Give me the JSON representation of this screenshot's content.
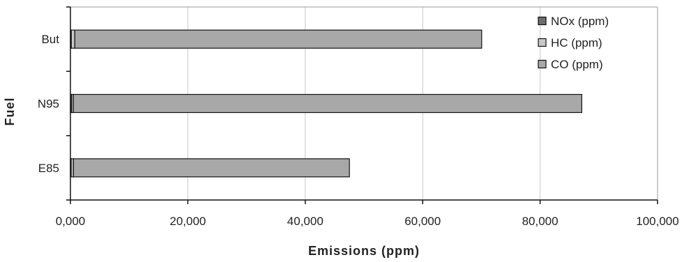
{
  "chart_data": {
    "type": "bar",
    "orientation": "horizontal",
    "stacked": true,
    "categories": [
      "But",
      "N95",
      "E85"
    ],
    "series": [
      {
        "name": "NOx (ppm)",
        "color": "#6e6e6e",
        "values": [
          150,
          200,
          120
        ]
      },
      {
        "name": "HC (ppm)",
        "color": "#c8c8c8",
        "values": [
          600,
          300,
          400
        ]
      },
      {
        "name": "CO (ppm)",
        "color": "#a8a8a8",
        "values": [
          69300,
          86600,
          47000
        ]
      }
    ],
    "xlabel": "Emissions (ppm)",
    "ylabel": "Fuel",
    "xlim": [
      0,
      100000
    ],
    "xticks": [
      0,
      20000,
      40000,
      60000,
      80000,
      100000
    ],
    "xtick_labels": [
      "0,000",
      "20,000",
      "40,000",
      "60,000",
      "80,000",
      "100,000"
    ],
    "grid": "vertical",
    "legend_position": "top-right"
  }
}
